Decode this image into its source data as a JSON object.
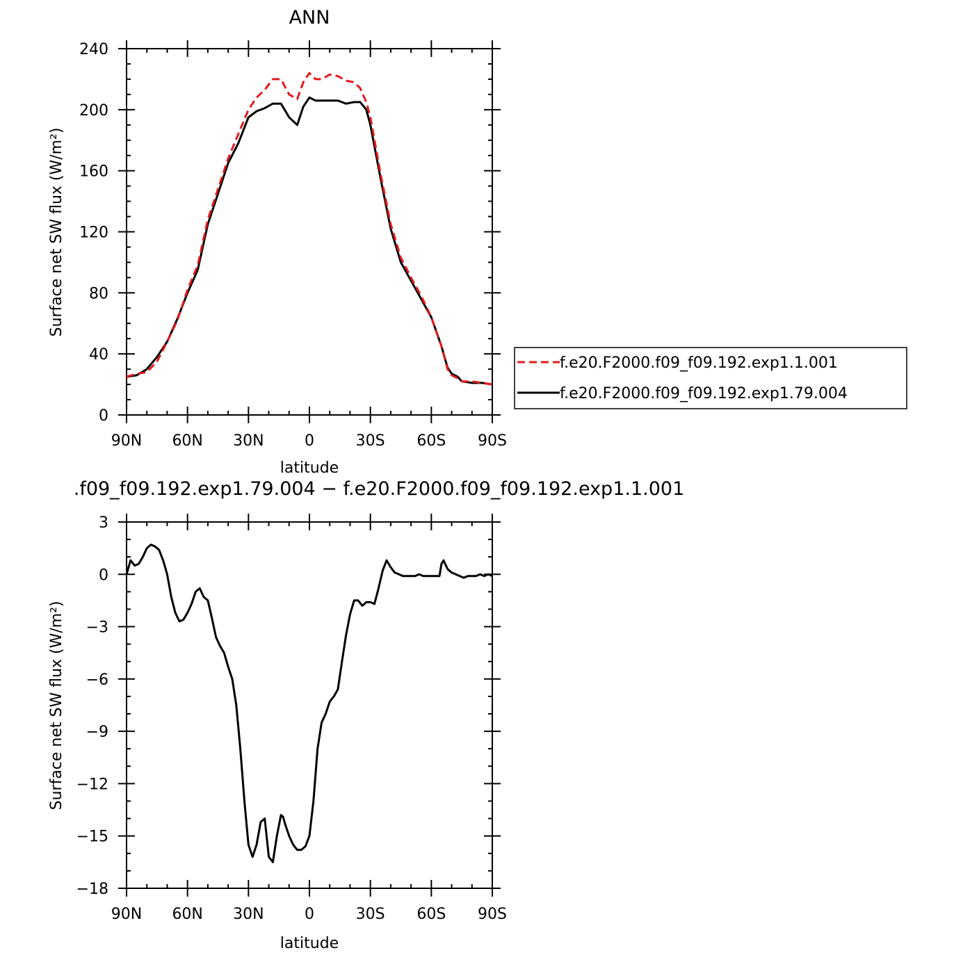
{
  "chart_data": [
    {
      "type": "line",
      "title": "ANN",
      "xlabel": "latitude",
      "ylabel": "Surface net SW flux (W/m²)",
      "xlim": [
        -90,
        90
      ],
      "ylim": [
        0,
        240
      ],
      "x_ticks": [
        -90,
        -60,
        -30,
        0,
        30,
        60,
        90
      ],
      "x_tick_labels": [
        "90N",
        "60N",
        "30N",
        "0",
        "30S",
        "60S",
        "90S"
      ],
      "y_ticks": [
        0,
        40,
        80,
        120,
        160,
        200,
        240
      ],
      "y_tick_labels": [
        "0",
        "40",
        "80",
        "120",
        "160",
        "200",
        "240"
      ],
      "grid": false,
      "legend_position": "right",
      "series": [
        {
          "name": "f.e20.F2000.f09_f09.192.exp1.1.001",
          "color": "#e31a1c",
          "dash": "dashed",
          "x": [
            -90,
            -85,
            -80,
            -75,
            -70,
            -65,
            -60,
            -55,
            -50,
            -45,
            -40,
            -35,
            -30,
            -26,
            -22,
            -18,
            -14,
            -10,
            -6,
            -3,
            0,
            3,
            6,
            10,
            14,
            18,
            22,
            25,
            28,
            30,
            35,
            40,
            45,
            50,
            55,
            60,
            65,
            68,
            70,
            73,
            75,
            80,
            85,
            90
          ],
          "values": [
            25,
            27,
            28,
            35,
            48,
            62,
            82,
            98,
            128,
            148,
            168,
            184,
            200,
            208,
            213,
            220,
            220,
            210,
            207,
            218,
            224,
            220,
            220,
            223,
            222,
            219,
            218,
            214,
            205,
            195,
            158,
            125,
            103,
            90,
            78,
            64,
            45,
            30,
            26,
            24,
            22,
            22,
            21,
            20
          ]
        },
        {
          "name": "f.e20.F2000.f09_f09.192.exp1.79.004",
          "color": "#000000",
          "dash": "solid",
          "x": [
            -90,
            -85,
            -80,
            -75,
            -70,
            -65,
            -60,
            -55,
            -50,
            -45,
            -40,
            -35,
            -30,
            -26,
            -22,
            -18,
            -14,
            -10,
            -6,
            -3,
            0,
            3,
            6,
            10,
            14,
            18,
            22,
            25,
            28,
            30,
            35,
            40,
            45,
            50,
            55,
            60,
            65,
            68,
            70,
            73,
            75,
            80,
            85,
            90
          ],
          "values": [
            25,
            26,
            30,
            38,
            48,
            63,
            80,
            95,
            125,
            145,
            165,
            178,
            195,
            199,
            201,
            204,
            204,
            195,
            190,
            202,
            208,
            206,
            206,
            206,
            206,
            204,
            205,
            205,
            200,
            190,
            155,
            122,
            100,
            88,
            76,
            64,
            45,
            31,
            27,
            25,
            22,
            21,
            21,
            20
          ]
        }
      ]
    },
    {
      "type": "line",
      "title": ".f09_f09.192.exp1.79.004 − f.e20.F2000.f09_f09.192.exp1.1.001",
      "xlabel": "latitude",
      "ylabel": "Surface net SW flux (W/m²)",
      "xlim": [
        -90,
        90
      ],
      "ylim": [
        -18,
        3
      ],
      "x_ticks": [
        -90,
        -60,
        -30,
        0,
        30,
        60,
        90
      ],
      "x_tick_labels": [
        "90N",
        "60N",
        "30N",
        "0",
        "30S",
        "60S",
        "90S"
      ],
      "y_ticks": [
        -18,
        -15,
        -12,
        -9,
        -6,
        -3,
        0,
        3
      ],
      "y_tick_labels": [
        "−18",
        "−15",
        "−12",
        "−9",
        "−6",
        "−3",
        "0",
        "3"
      ],
      "grid": false,
      "series": [
        {
          "color": "#000000",
          "dash": "solid",
          "x": [
            -90,
            -88,
            -86,
            -84,
            -82,
            -80,
            -78,
            -76,
            -74,
            -72,
            -70,
            -68,
            -66,
            -64,
            -62,
            -60,
            -58,
            -56,
            -54,
            -52,
            -50,
            -48,
            -46,
            -44,
            -42,
            -40,
            -38,
            -36,
            -34,
            -32,
            -30,
            -28,
            -26,
            -24,
            -22,
            -20,
            -18,
            -16,
            -14,
            -13,
            -12,
            -10,
            -8,
            -6,
            -4,
            -3,
            -2,
            0,
            2,
            4,
            6,
            8,
            10,
            12,
            14,
            16,
            18,
            20,
            22,
            24,
            26,
            28,
            30,
            32,
            34,
            36,
            38,
            40,
            42,
            44,
            46,
            48,
            50,
            52,
            54,
            56,
            58,
            60,
            62,
            64,
            65,
            66,
            68,
            70,
            72,
            74,
            76,
            78,
            80,
            82,
            84,
            86,
            88,
            90
          ],
          "values": [
            0,
            0.8,
            0.5,
            0.6,
            1.0,
            1.5,
            1.7,
            1.6,
            1.4,
            0.8,
            0,
            -1.3,
            -2.2,
            -2.7,
            -2.6,
            -2.2,
            -1.7,
            -1.0,
            -0.8,
            -1.3,
            -1.5,
            -2.5,
            -3.6,
            -4.1,
            -4.5,
            -5.3,
            -6.0,
            -7.5,
            -10.0,
            -13.0,
            -15.5,
            -16.2,
            -15.5,
            -14.2,
            -14.0,
            -16.2,
            -16.5,
            -15.0,
            -13.8,
            -13.9,
            -14.3,
            -15.0,
            -15.5,
            -15.8,
            -15.8,
            -15.7,
            -15.6,
            -15.0,
            -13.0,
            -10.0,
            -8.5,
            -8.0,
            -7.3,
            -7.0,
            -6.6,
            -5.0,
            -3.5,
            -2.3,
            -1.5,
            -1.5,
            -1.8,
            -1.6,
            -1.6,
            -1.7,
            -0.8,
            0.2,
            0.8,
            0.4,
            0.1,
            0.0,
            -0.1,
            -0.1,
            -0.1,
            -0.1,
            0.0,
            -0.1,
            -0.1,
            -0.1,
            -0.1,
            -0.1,
            0.6,
            0.8,
            0.3,
            0.1,
            0.0,
            -0.1,
            -0.2,
            -0.1,
            -0.1,
            -0.1,
            0.0,
            -0.1,
            0.0,
            -0.1
          ]
        }
      ]
    }
  ]
}
